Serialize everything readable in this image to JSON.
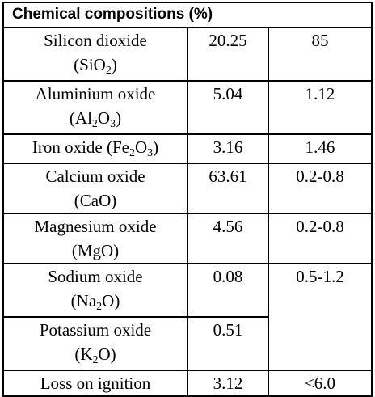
{
  "table": {
    "header": "Chemical compositions (%)",
    "rows": [
      {
        "name_line1": "Silicon dioxide",
        "formula": [
          [
            "(SiO",
            ""
          ],
          [
            "2",
            "sub"
          ],
          [
            ")",
            ""
          ]
        ],
        "v1": "20.25",
        "v2": "85"
      },
      {
        "name_line1": "Aluminium oxide",
        "formula": [
          [
            "(Al",
            ""
          ],
          [
            "2",
            "sub"
          ],
          [
            "O",
            ""
          ],
          [
            "3",
            "sub"
          ],
          [
            ")",
            ""
          ]
        ],
        "v1": "5.04",
        "v2": "1.12"
      },
      {
        "name_inline": [
          [
            "Iron oxide (Fe",
            ""
          ],
          [
            "2",
            "sub"
          ],
          [
            "O",
            ""
          ],
          [
            "3",
            "sub"
          ],
          [
            ")",
            ""
          ]
        ],
        "v1": "3.16",
        "v2": "1.46"
      },
      {
        "name_line1": "Calcium oxide",
        "formula": [
          [
            "(CaO)",
            ""
          ]
        ],
        "v1": "63.61",
        "v2": "0.2-0.8"
      },
      {
        "name_line1": "Magnesium oxide",
        "formula": [
          [
            "(MgO)",
            ""
          ]
        ],
        "v1": "4.56",
        "v2": "0.2-0.8"
      },
      {
        "name_line1": "Sodium oxide",
        "formula": [
          [
            "(Na",
            ""
          ],
          [
            "2",
            "sub"
          ],
          [
            "O)",
            ""
          ]
        ],
        "v1": "0.08",
        "v2": "0.5-1.2"
      },
      {
        "name_line1": "Potassium oxide",
        "formula": [
          [
            "(K",
            ""
          ],
          [
            "2",
            "sub"
          ],
          [
            "O)",
            ""
          ]
        ],
        "v1": "0.51",
        "v2": ""
      },
      {
        "name_line1": "Loss on ignition",
        "v1": "3.12",
        "v2": "<6.0"
      }
    ]
  }
}
